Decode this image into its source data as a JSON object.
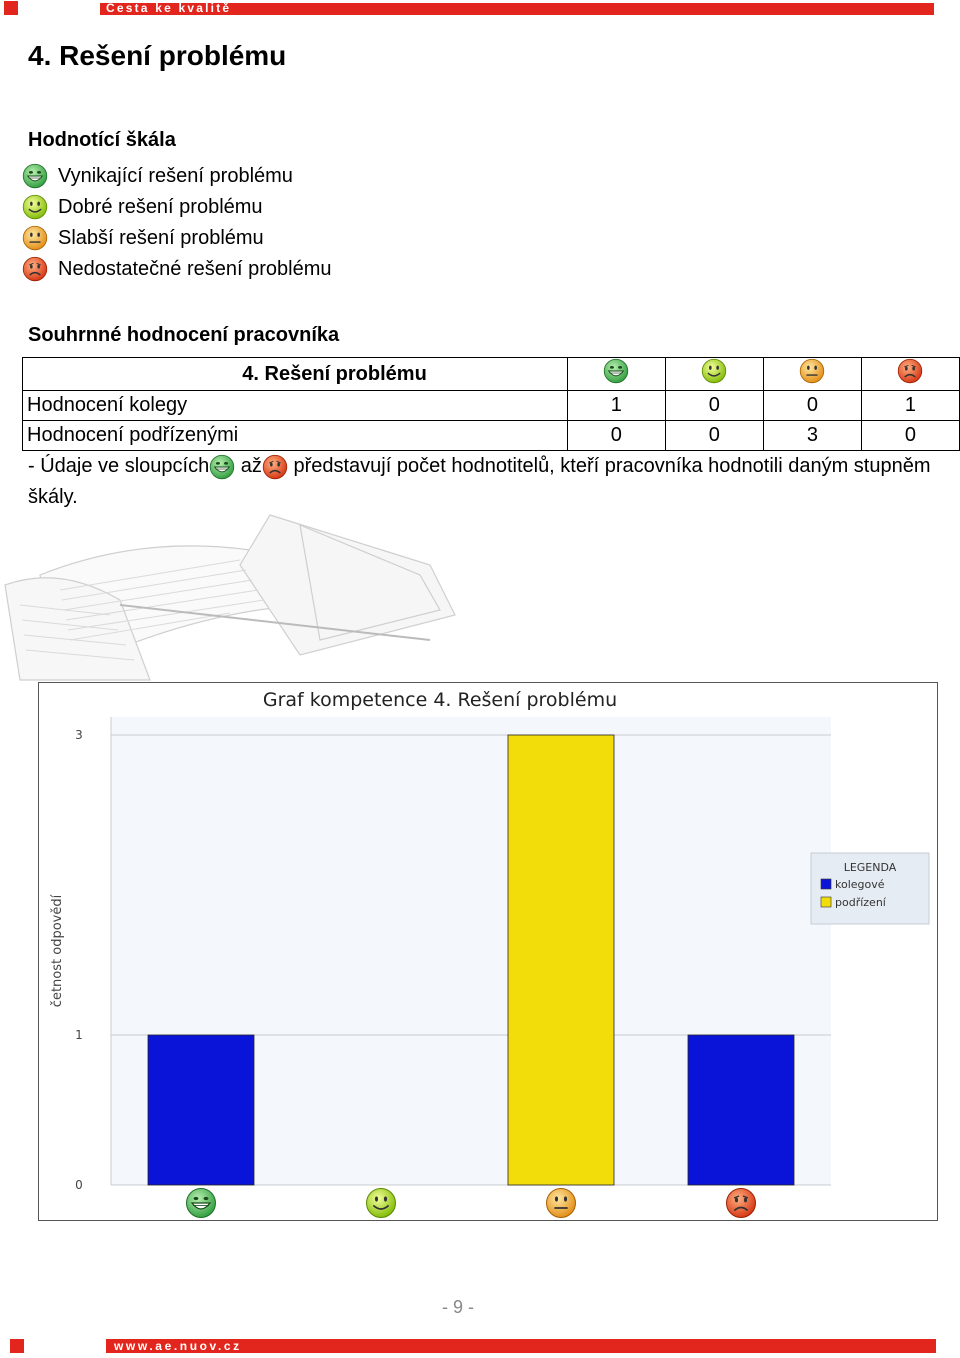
{
  "header": {
    "banner_text": "Cesta ke kvalitě"
  },
  "page_title": "4. Rešení problému",
  "scale": {
    "title": "Hodnotící škála",
    "items": [
      {
        "label": "Vynikající rešení problému",
        "icon": "excellent-smiley-icon",
        "color": "#3cb043"
      },
      {
        "label": "Dobré rešení problému",
        "icon": "good-smiley-icon",
        "color": "#a6d11a"
      },
      {
        "label": "Slabší rešení problému",
        "icon": "weak-smiley-icon",
        "color": "#f0a020"
      },
      {
        "label": "Nedostatečné rešení problému",
        "icon": "poor-smiley-icon",
        "color": "#e0401c"
      }
    ]
  },
  "summary": {
    "title": "Souhrnné hodnocení pracovníka",
    "header": "4. Rešení problému",
    "rows": [
      {
        "label": "Hodnocení kolegy",
        "values": [
          "1",
          "0",
          "0",
          "1"
        ]
      },
      {
        "label": "Hodnocení podřízenými",
        "values": [
          "0",
          "0",
          "3",
          "0"
        ]
      }
    ],
    "note_part1": "- Údaje ve sloupcích",
    "note_part2": "až",
    "note_part3": "představují počet hodnotitelů, kteří pracovníka hodnotili daným stupněm škály."
  },
  "chart_data": {
    "type": "bar",
    "title": "Graf kompetence 4. Rešení problému",
    "ylabel": "četnost odpovědí",
    "ylim": [
      0,
      3
    ],
    "yticks": [
      "0",
      "1",
      "3"
    ],
    "categories": [
      "excellent-smiley-icon",
      "good-smiley-icon",
      "weak-smiley-icon",
      "poor-smiley-icon"
    ],
    "series": [
      {
        "name": "kolegové",
        "color": "#0a14d8",
        "values": [
          1,
          0,
          0,
          1
        ]
      },
      {
        "name": "podřízení",
        "color": "#f2dc0a",
        "values": [
          0,
          0,
          3,
          0
        ]
      }
    ],
    "legend": {
      "title": "LEGENDA",
      "position": "right"
    },
    "grid": true
  },
  "footer": {
    "page_number": "- 9 -",
    "banner_text": "www.ae.nuov.cz"
  }
}
